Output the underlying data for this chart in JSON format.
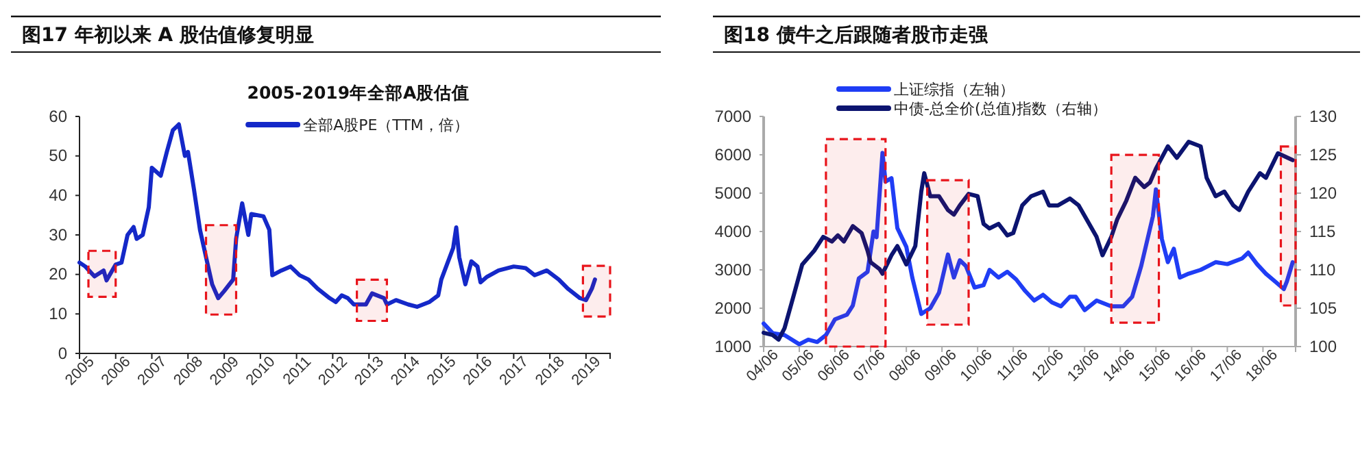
{
  "chart_data": [
    {
      "type": "line",
      "title": "图17 年初以来 A 股估值修复明显",
      "subtitle": "2005-2019年全部A股估值",
      "legend": "top",
      "grid": false,
      "xlim": [
        "2005",
        "2019-09"
      ],
      "ylim": [
        0,
        60
      ],
      "yticks": [
        0,
        10,
        20,
        30,
        40,
        50,
        60
      ],
      "xticks": [
        {
          "value": "2005",
          "label": "2005"
        },
        {
          "value": "2006",
          "label": "2006"
        },
        {
          "value": "2007",
          "label": "2007"
        },
        {
          "value": "2008",
          "label": "2008"
        },
        {
          "value": "2009",
          "label": "2009"
        },
        {
          "value": "2010",
          "label": "2010"
        },
        {
          "value": "2011",
          "label": "2011"
        },
        {
          "value": "2012",
          "label": "2012"
        },
        {
          "value": "2013",
          "label": "2013"
        },
        {
          "value": "2014",
          "label": "2014"
        },
        {
          "value": "2015",
          "label": "2015"
        },
        {
          "value": "2016",
          "label": "2016"
        },
        {
          "value": "2017",
          "label": "2017"
        },
        {
          "value": "2018",
          "label": "2018"
        },
        {
          "value": "2019",
          "label": "2019"
        }
      ],
      "bands": [
        {
          "axis": "x",
          "from": "2005-04",
          "to": "2006-01",
          "color": "#e8141b"
        },
        {
          "axis": "x",
          "from": "2008-07",
          "to": "2009-05",
          "color": "#e8141b"
        },
        {
          "axis": "x",
          "from": "2012-09",
          "to": "2013-07",
          "color": "#e8141b"
        },
        {
          "axis": "x",
          "from": "2018-12",
          "to": "2019-09",
          "color": "#e8141b"
        }
      ],
      "series": [
        {
          "name": "全部A股PE（TTM，倍）",
          "color": "#1428c8",
          "x": [
            "2005-01",
            "2005-03",
            "2005-06",
            "2005-09",
            "2005-10",
            "2006-01",
            "2006-03",
            "2006-05",
            "2006-07",
            "2006-08",
            "2006-10",
            "2006-12",
            "2007-01",
            "2007-04",
            "2007-06",
            "2007-08",
            "2007-10",
            "2007-12",
            "2008-01",
            "2008-03",
            "2008-05",
            "2008-07",
            "2008-09",
            "2008-11",
            "2009-01",
            "2009-04",
            "2009-05",
            "2009-07",
            "2009-09",
            "2009-10",
            "2010-02",
            "2010-04",
            "2010-05",
            "2010-08",
            "2010-11",
            "2011-02",
            "2011-05",
            "2011-08",
            "2011-12",
            "2012-02",
            "2012-04",
            "2012-06",
            "2012-08",
            "2012-12",
            "2013-02",
            "2013-06",
            "2013-07",
            "2013-10",
            "2014-02",
            "2014-05",
            "2014-09",
            "2014-12",
            "2015-01",
            "2015-05",
            "2015-06",
            "2015-07",
            "2015-09",
            "2015-11",
            "2016-01",
            "2016-02",
            "2016-04",
            "2016-08",
            "2017-01",
            "2017-05",
            "2017-08",
            "2017-12",
            "2018-04",
            "2018-07",
            "2018-11",
            "2019-01",
            "2019-03",
            "2019-04"
          ],
          "values": [
            23,
            22,
            19.5,
            21,
            18.5,
            22.5,
            23,
            30,
            32,
            29,
            30,
            37,
            47,
            45,
            51,
            56.5,
            58,
            50,
            51,
            41.6,
            31.3,
            24.4,
            17.5,
            14,
            15.8,
            18.7,
            29,
            38,
            30,
            35.3,
            34.7,
            31.3,
            19.8,
            21,
            22,
            19.8,
            18.7,
            16.4,
            14,
            13,
            14.7,
            14,
            12.4,
            12.4,
            15.2,
            14,
            12.4,
            13.5,
            12.4,
            11.8,
            13,
            14.7,
            18.7,
            26.7,
            31.9,
            24.4,
            17.5,
            23.3,
            22,
            18,
            19.3,
            21,
            22,
            21.6,
            19.8,
            21,
            18.7,
            16.4,
            14,
            13.5,
            16.4,
            18.7
          ]
        }
      ]
    },
    {
      "type": "line",
      "title": "图18  债牛之后跟随者股市走强",
      "legend": "top left",
      "grid": false,
      "xlim": [
        "2004-06",
        "2019-05"
      ],
      "ylim": [
        1000,
        7000
      ],
      "yticks": [
        1000,
        2000,
        3000,
        4000,
        5000,
        6000,
        7000
      ],
      "y2lim": [
        100,
        130
      ],
      "y2ticks": [
        100,
        105,
        110,
        115,
        120,
        125,
        130
      ],
      "xticks": [
        {
          "value": "2004-06",
          "label": "04/06"
        },
        {
          "value": "2005-06",
          "label": "05/06"
        },
        {
          "value": "2006-06",
          "label": "06/06"
        },
        {
          "value": "2007-06",
          "label": "07/06"
        },
        {
          "value": "2008-06",
          "label": "08/06"
        },
        {
          "value": "2009-06",
          "label": "09/06"
        },
        {
          "value": "2010-06",
          "label": "10/06"
        },
        {
          "value": "2011-06",
          "label": "11/06"
        },
        {
          "value": "2012-06",
          "label": "12/06"
        },
        {
          "value": "2013-06",
          "label": "13/06"
        },
        {
          "value": "2014-06",
          "label": "14/06"
        },
        {
          "value": "2015-06",
          "label": "15/06"
        },
        {
          "value": "2016-06",
          "label": "16/06"
        },
        {
          "value": "2017-06",
          "label": "17/06"
        },
        {
          "value": "2018-06",
          "label": "18/06"
        }
      ],
      "bands": [
        {
          "axis": "x",
          "from": "2006-03",
          "to": "2007-11",
          "color": "#e8141b"
        },
        {
          "axis": "x",
          "from": "2009-01",
          "to": "2010-03",
          "color": "#e8141b"
        },
        {
          "axis": "x",
          "from": "2014-03",
          "to": "2015-07",
          "color": "#e8141b"
        },
        {
          "axis": "x",
          "from": "2018-12",
          "to": "2019-05",
          "color": "#e8141b"
        }
      ],
      "series": [
        {
          "name": "上证综指（左轴）",
          "color": "#1f3df5",
          "x": [
            "2004-06",
            "2004-09",
            "2005-01",
            "2005-06",
            "2005-09",
            "2005-12",
            "2006-03",
            "2006-06",
            "2006-10",
            "2006-12",
            "2007-02",
            "2007-05",
            "2007-07",
            "2007-08",
            "2007-10",
            "2007-11",
            "2008-01",
            "2008-03",
            "2008-06",
            "2008-08",
            "2008-11",
            "2008-12",
            "2009-02",
            "2009-05",
            "2009-08",
            "2009-10",
            "2009-12",
            "2010-02",
            "2010-05",
            "2010-08",
            "2010-10",
            "2011-01",
            "2011-04",
            "2011-07",
            "2011-10",
            "2012-01",
            "2012-04",
            "2012-07",
            "2012-10",
            "2013-01",
            "2013-03",
            "2013-06",
            "2013-10",
            "2014-03",
            "2014-07",
            "2014-10",
            "2015-01",
            "2015-05",
            "2015-06",
            "2015-08",
            "2015-10",
            "2015-12",
            "2016-02",
            "2016-05",
            "2016-09",
            "2017-02",
            "2017-06",
            "2017-11",
            "2018-01",
            "2018-04",
            "2018-07",
            "2018-10",
            "2019-01",
            "2019-02",
            "2019-04"
          ],
          "values": [
            1600,
            1350,
            1300,
            1060,
            1180,
            1120,
            1300,
            1710,
            1830,
            2070,
            2780,
            2950,
            4000,
            3850,
            6050,
            5300,
            5390,
            4090,
            3600,
            2800,
            1850,
            1900,
            2000,
            2400,
            3400,
            2800,
            3250,
            3100,
            2540,
            2600,
            3000,
            2800,
            2950,
            2750,
            2450,
            2200,
            2350,
            2150,
            2050,
            2300,
            2300,
            1950,
            2200,
            2050,
            2050,
            2300,
            3100,
            4400,
            5100,
            3800,
            3200,
            3550,
            2800,
            2900,
            3000,
            3200,
            3150,
            3300,
            3450,
            3150,
            2900,
            2700,
            2500,
            2700,
            3200
          ]
        },
        {
          "name": "中债-总全价(总值)指数（右轴）",
          "color": "#0c1470",
          "axis": "y2",
          "x": [
            "2004-06",
            "2004-09",
            "2004-11",
            "2005-01",
            "2005-04",
            "2005-07",
            "2005-11",
            "2006-02",
            "2006-05",
            "2006-07",
            "2006-09",
            "2006-12",
            "2007-03",
            "2007-05",
            "2007-06",
            "2007-09",
            "2007-10",
            "2008-01",
            "2008-03",
            "2008-06",
            "2008-09",
            "2008-11",
            "2008-12",
            "2009-02",
            "2009-05",
            "2009-08",
            "2009-10",
            "2009-12",
            "2010-03",
            "2010-06",
            "2010-08",
            "2010-10",
            "2011-01",
            "2011-04",
            "2011-06",
            "2011-09",
            "2011-12",
            "2012-04",
            "2012-06",
            "2012-09",
            "2013-01",
            "2013-04",
            "2013-10",
            "2013-12",
            "2014-03",
            "2014-05",
            "2014-08",
            "2014-11",
            "2015-02",
            "2015-04",
            "2015-06",
            "2015-10",
            "2016-01",
            "2016-05",
            "2016-09",
            "2016-11",
            "2017-02",
            "2017-05",
            "2017-08",
            "2017-10",
            "2018-01",
            "2018-05",
            "2018-07",
            "2018-11",
            "2019-04"
          ],
          "values": [
            101.8,
            101.5,
            100.9,
            102.4,
            106.5,
            110.7,
            112.5,
            114.3,
            113.7,
            114.5,
            113.7,
            115.7,
            114.8,
            112.5,
            111,
            110.1,
            109.5,
            111.9,
            113.1,
            110.7,
            113.1,
            120.2,
            122.6,
            119.6,
            119.6,
            117.8,
            117.2,
            118.4,
            119.9,
            119.6,
            116,
            115.4,
            116,
            114.5,
            114.8,
            118.4,
            119.6,
            120.2,
            118.4,
            118.4,
            119.3,
            118.4,
            114.3,
            111.9,
            114.3,
            116.6,
            119,
            122,
            120.8,
            121.4,
            123.2,
            126.1,
            124.6,
            126.7,
            126.1,
            122,
            119.6,
            120.2,
            118.4,
            117.8,
            120.2,
            122.6,
            122,
            125.2,
            124.3
          ]
        }
      ]
    }
  ]
}
